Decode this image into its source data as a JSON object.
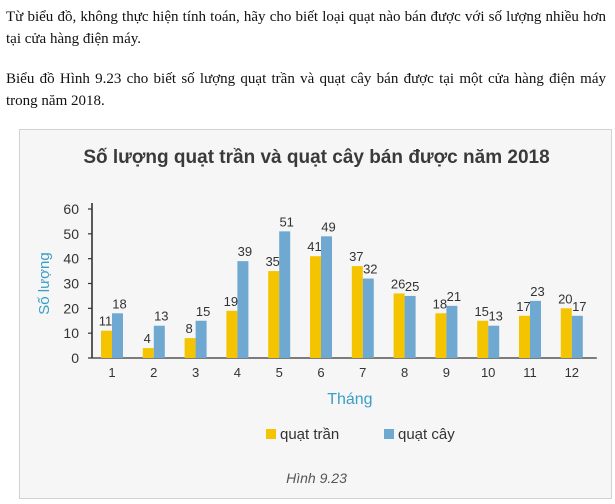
{
  "question_text": "Từ biểu đồ, không thực hiện tính toán, hãy cho biết loại quạt nào bán được với số lượng nhiều hơn tại cửa hàng điện máy.",
  "intro_text": "Biểu đồ Hình 9.23 cho biết số lượng quạt trần và quạt cây bán được tại một cửa hàng điện máy trong năm 2018.",
  "figure_caption": "Hình 9.23",
  "colors": {
    "series1": "#f5c400",
    "series2": "#6fa8d0",
    "axis_label": "#3a9fc6"
  },
  "chart_data": {
    "type": "bar",
    "title": "Số lượng quạt trần và quạt cây bán được năm 2018",
    "xlabel": "Tháng",
    "ylabel": "Số lượng",
    "ylim": [
      0,
      60
    ],
    "yticks": [
      0,
      10,
      20,
      30,
      40,
      50,
      60
    ],
    "grid": false,
    "legend_position": "bottom-center",
    "categories": [
      "1",
      "2",
      "3",
      "4",
      "5",
      "6",
      "7",
      "8",
      "9",
      "10",
      "11",
      "12"
    ],
    "series": [
      {
        "name": "quạt trần",
        "values": [
          11,
          4,
          8,
          19,
          35,
          41,
          37,
          26,
          18,
          15,
          17,
          20
        ]
      },
      {
        "name": "quạt cây",
        "values": [
          18,
          13,
          15,
          39,
          51,
          49,
          32,
          25,
          21,
          13,
          23,
          17
        ]
      }
    ]
  }
}
